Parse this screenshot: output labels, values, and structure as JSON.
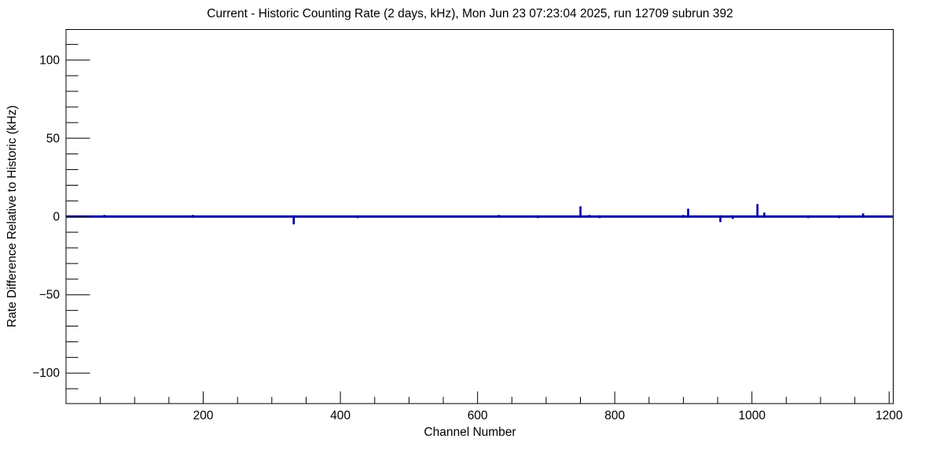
{
  "window": {
    "background": "#ffffff"
  },
  "colors": {
    "frame": "#000000",
    "histogram_line": "#0000a8",
    "text": "#000000"
  },
  "chart_data": {
    "type": "line",
    "title": "Current - Historic Counting Rate (2 days, kHz), Mon Jun 23 07:23:04 2025, run 12709 subrun 392",
    "xlabel": "Channel Number",
    "ylabel": "Rate Difference Relative to Historic (kHz)",
    "xlim": [
      0,
      1206
    ],
    "ylim": [
      -119.5,
      119.5
    ],
    "grid": false,
    "legend": false,
    "x_ticks": [
      {
        "value": 200,
        "label": "200"
      },
      {
        "value": 400,
        "label": "400"
      },
      {
        "value": 600,
        "label": "600"
      },
      {
        "value": 800,
        "label": "800"
      },
      {
        "value": 1000,
        "label": "1000"
      },
      {
        "value": 1200,
        "label": "1200"
      }
    ],
    "x_minor_step": 50,
    "y_ticks": [
      {
        "value": 100,
        "label": "100"
      },
      {
        "value": 50,
        "label": "50"
      },
      {
        "value": 0,
        "label": "0"
      },
      {
        "value": -50,
        "label": "−50"
      },
      {
        "value": -100,
        "label": "−100"
      }
    ],
    "y_minor_step": 10,
    "baseline_value": 0,
    "series_description": "Rate difference is ~0 kHz for all channels except isolated spikes",
    "spikes": [
      {
        "channel": 56,
        "value": 1
      },
      {
        "channel": 185,
        "value": 1
      },
      {
        "channel": 332,
        "value": -5
      },
      {
        "channel": 425,
        "value": -1
      },
      {
        "channel": 631,
        "value": 1
      },
      {
        "channel": 688,
        "value": -1
      },
      {
        "channel": 750,
        "value": 6.5
      },
      {
        "channel": 763,
        "value": 1
      },
      {
        "channel": 778,
        "value": -1
      },
      {
        "channel": 900,
        "value": 1
      },
      {
        "channel": 907,
        "value": 5
      },
      {
        "channel": 954,
        "value": -3.5
      },
      {
        "channel": 972,
        "value": -1.5
      },
      {
        "channel": 1008,
        "value": 8
      },
      {
        "channel": 1018,
        "value": 2.5
      },
      {
        "channel": 1082,
        "value": -1
      },
      {
        "channel": 1127,
        "value": -1
      },
      {
        "channel": 1162,
        "value": 2
      }
    ]
  }
}
